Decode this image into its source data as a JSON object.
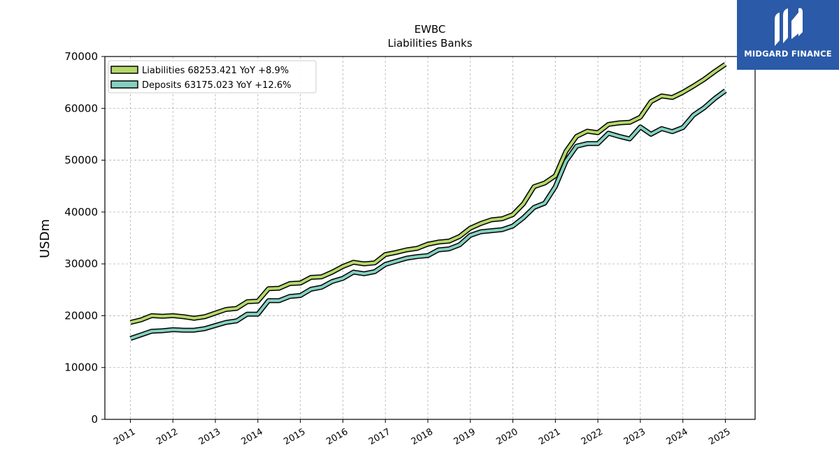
{
  "brand": {
    "name": "MIDGARD FINANCE",
    "bg_color": "#2a5aa8",
    "icon": "midgard-logo-icon"
  },
  "chart_data": {
    "type": "line",
    "title": "EWBC",
    "subtitle": "Liabilities Banks",
    "xlabel": "",
    "ylabel": "USDm",
    "ylim": [
      0,
      70000
    ],
    "yticks": [
      0,
      10000,
      20000,
      30000,
      40000,
      50000,
      60000,
      70000
    ],
    "xlim": [
      2010.4,
      2025.7
    ],
    "xticks": [
      "2011",
      "2012",
      "2013",
      "2014",
      "2015",
      "2016",
      "2017",
      "2018",
      "2019",
      "2020",
      "2021",
      "2022",
      "2023",
      "2024",
      "2025"
    ],
    "grid": true,
    "legend_position": "top-left",
    "x": [
      2011.0,
      2011.25,
      2011.5,
      2011.75,
      2012.0,
      2012.25,
      2012.5,
      2012.75,
      2013.0,
      2013.25,
      2013.5,
      2013.75,
      2014.0,
      2014.25,
      2014.5,
      2014.75,
      2015.0,
      2015.25,
      2015.5,
      2015.75,
      2016.0,
      2016.25,
      2016.5,
      2016.75,
      2017.0,
      2017.25,
      2017.5,
      2017.75,
      2018.0,
      2018.25,
      2018.5,
      2018.75,
      2019.0,
      2019.25,
      2019.5,
      2019.75,
      2020.0,
      2020.25,
      2020.5,
      2020.75,
      2021.0,
      2021.25,
      2021.5,
      2021.75,
      2022.0,
      2022.25,
      2022.5,
      2022.75,
      2023.0,
      2023.25,
      2023.5,
      2023.75,
      2024.0,
      2024.25,
      2024.5,
      2024.75,
      2025.0
    ],
    "series": [
      {
        "name": "Liabilities",
        "legend": "Liabilities  68253.421 YoY +8.9%",
        "color": "#b5d86a",
        "values": [
          18700,
          19200,
          20000,
          19900,
          20000,
          19800,
          19500,
          19800,
          20500,
          21200,
          21400,
          22700,
          22800,
          25200,
          25300,
          26200,
          26300,
          27400,
          27500,
          28400,
          29500,
          30300,
          30000,
          30200,
          31800,
          32200,
          32700,
          33000,
          33800,
          34200,
          34400,
          35300,
          36900,
          37800,
          38500,
          38700,
          39500,
          41600,
          44900,
          45600,
          47000,
          51700,
          54600,
          55600,
          55300,
          56900,
          57200,
          57300,
          58300,
          61300,
          62400,
          62100,
          63100,
          64300,
          65600,
          67100,
          68500
        ]
      },
      {
        "name": "Deposits",
        "legend": "Deposits  63175.023 YoY +12.6%",
        "color": "#84d0c0",
        "values": [
          15600,
          16300,
          17000,
          17100,
          17300,
          17200,
          17200,
          17500,
          18100,
          18700,
          19000,
          20300,
          20300,
          22900,
          22900,
          23700,
          23900,
          25100,
          25500,
          26600,
          27200,
          28400,
          28100,
          28500,
          29900,
          30500,
          31100,
          31400,
          31600,
          32700,
          32900,
          33700,
          35500,
          36200,
          36400,
          36600,
          37300,
          38900,
          40900,
          41700,
          44900,
          49800,
          52700,
          53200,
          53200,
          55200,
          54600,
          54100,
          56400,
          55000,
          56100,
          55500,
          56300,
          58700,
          60100,
          61900,
          63400
        ]
      }
    ]
  }
}
